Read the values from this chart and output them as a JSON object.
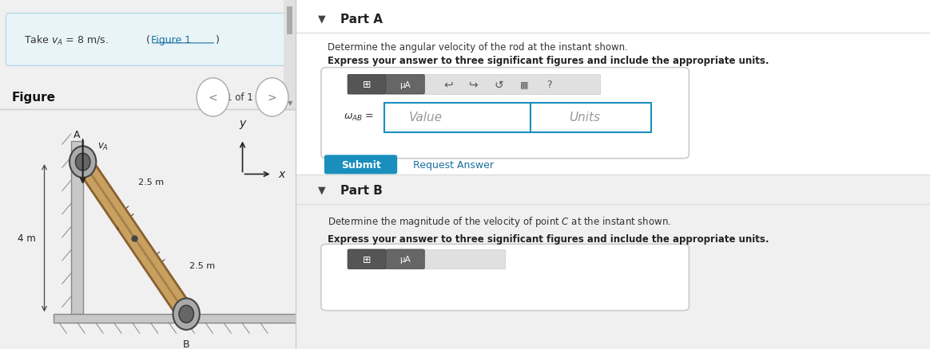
{
  "bg_color": "#f0f0f0",
  "left_panel_bg": "#ffffff",
  "take_box_bg": "#e8f4f8",
  "figure_label": "Figure",
  "nav_text": "1 of 1",
  "right_panel_bg": "#f5f5f5",
  "part_a_title": "Part A",
  "part_a_desc1": "Determine the angular velocity of the rod at the instant shown.",
  "part_a_desc2": "Express your answer to three significant figures and include the appropriate units.",
  "value_placeholder": "Value",
  "units_placeholder": "Units",
  "submit_text": "Submit",
  "submit_bg": "#1a8fbd",
  "request_text": "Request Answer",
  "part_b_title": "Part B",
  "part_b_desc1": "Determine the magnitude of the velocity of point C at the instant shown.",
  "part_b_desc2": "Express your answer to three significant figures and include the appropriate units.",
  "rod_color": "#c8a060",
  "rod_dark": "#8b6030",
  "text_color": "#333333",
  "link_color": "#1a6fa0"
}
